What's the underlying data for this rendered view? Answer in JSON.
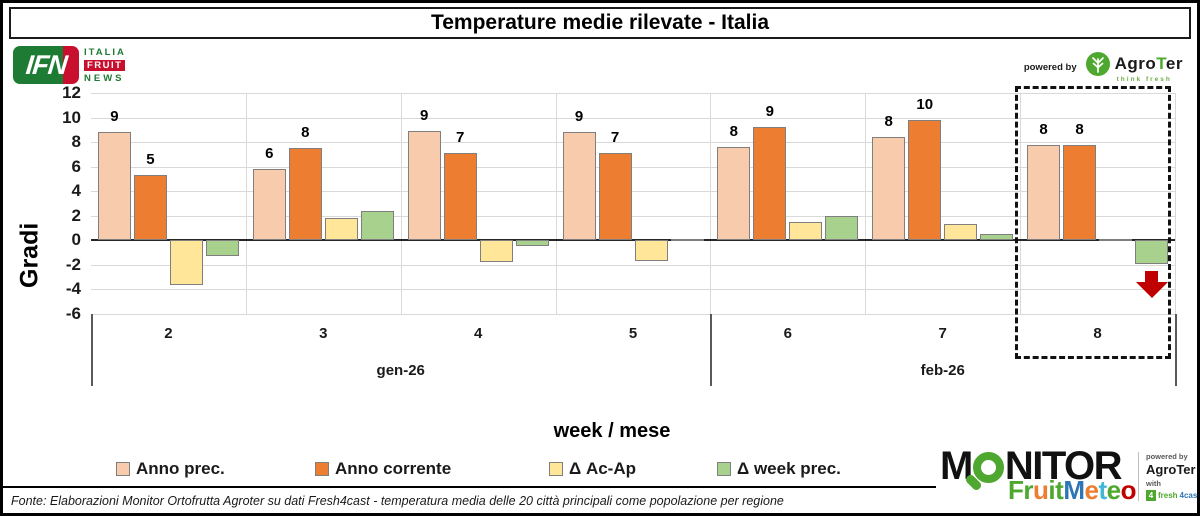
{
  "title": "Temperature medie rilevate - Italia",
  "header": {
    "ifn": {
      "abbr": "IFN",
      "line1": "ITALIA",
      "line2": "FRUIT",
      "line3": "NEWS"
    },
    "powered_by": {
      "label": "powered by",
      "brand_pre": "Agro",
      "brand_t": "T",
      "brand_post": "er",
      "tagline": "think fresh"
    }
  },
  "chart_data": {
    "type": "bar",
    "title": "Temperature medie rilevate - Italia",
    "ylabel": "Gradi",
    "xlabel": "week / mese",
    "ylim": [
      -6,
      12
    ],
    "ytick_step": 2,
    "grid": true,
    "categories": [
      "2",
      "3",
      "4",
      "5",
      "6",
      "7",
      "8"
    ],
    "month_groups": [
      {
        "label": "gen-26",
        "span": [
          0,
          3
        ]
      },
      {
        "label": "feb-26",
        "span": [
          4,
          6
        ]
      }
    ],
    "series": [
      {
        "name": "Anno prec.",
        "color": "#F8CBAD",
        "values": [
          8.8,
          5.8,
          8.9,
          8.8,
          7.6,
          8.4,
          7.8
        ],
        "labels": [
          "9",
          "6",
          "9",
          "9",
          "8",
          "8",
          "8"
        ]
      },
      {
        "name": "Anno corrente",
        "color": "#ED7D31",
        "values": [
          5.3,
          7.5,
          7.1,
          7.1,
          9.2,
          9.8,
          7.8
        ],
        "labels": [
          "5",
          "8",
          "7",
          "7",
          "9",
          "10",
          "8"
        ]
      },
      {
        "name": "Δ Ac-Ap",
        "color": "#FFE699",
        "values": [
          -3.6,
          1.8,
          -1.8,
          -1.7,
          1.5,
          1.3,
          0.1
        ],
        "labels": null
      },
      {
        "name": "Δ week prec.",
        "color": "#A9D18E",
        "values": [
          -1.3,
          2.4,
          -0.5,
          0.1,
          2.0,
          0.5,
          -1.9
        ],
        "labels": null
      }
    ],
    "highlight": {
      "category_index": 6,
      "style": "dashed-box"
    },
    "annotation": {
      "type": "down-arrow",
      "color": "#C00000",
      "category_index": 6,
      "series_index": 3
    },
    "legend_position": "bottom"
  },
  "legend": {
    "items": [
      {
        "label": "Anno prec.",
        "color": "#F8CBAD"
      },
      {
        "label": "Anno corrente",
        "color": "#ED7D31"
      },
      {
        "label": "Δ Ac-Ap",
        "color": "#FFE699"
      },
      {
        "label": "Δ week prec.",
        "color": "#A9D18E"
      }
    ]
  },
  "footer": {
    "text": "Fonte: Elaborazioni Monitor Ortofrutta Agroter su dati Fresh4cast - temperatura media delle 20 città principali come popolazione per regione"
  },
  "monitor_logo": {
    "word_left": "M",
    "word_right": "NITOR",
    "fruitmeteo": [
      {
        "ch": "F",
        "c": "#4EA72E"
      },
      {
        "ch": "r",
        "c": "#4EA72E"
      },
      {
        "ch": "u",
        "c": "#ED7D31"
      },
      {
        "ch": "i",
        "c": "#4EA72E"
      },
      {
        "ch": "t",
        "c": "#4EA72E"
      },
      {
        "ch": "M",
        "c": "#2E75B6"
      },
      {
        "ch": "e",
        "c": "#ED7D31"
      },
      {
        "ch": "t",
        "c": "#41B8D5"
      },
      {
        "ch": "e",
        "c": "#4EA72E"
      },
      {
        "ch": "o",
        "c": "#C00000"
      }
    ],
    "powered": {
      "label": "powered by",
      "brand": "AgroTer",
      "with": "with",
      "square": "4",
      "fresh": "fresh",
      "cast": "4cast"
    }
  },
  "accent_colors": {
    "green": "#4EA72E",
    "red": "#C00000",
    "grid": "#D9D9D9"
  }
}
